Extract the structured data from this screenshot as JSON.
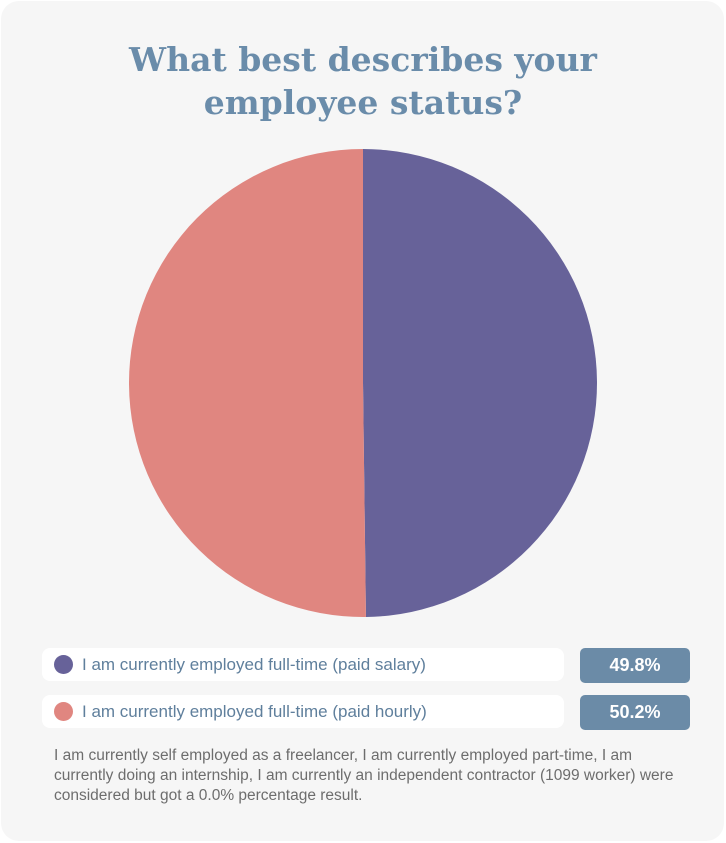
{
  "chart_data": {
    "type": "pie",
    "title_lines": [
      "What best describes your",
      "employee status?"
    ],
    "slices": [
      {
        "label": "I am currently employed full-time (paid salary)",
        "value": 49.8,
        "value_label": "49.8%",
        "color": "#676299"
      },
      {
        "label": "I am currently employed full-time (paid hourly)",
        "value": 50.2,
        "value_label": "50.2%",
        "color": "#e08680"
      }
    ],
    "start": "12 o'clock",
    "direction": "clockwise",
    "legend_position": "bottom"
  },
  "note": "I am currently self employed as a freelancer, I am currently employed part-time, I am currently doing an internship,  I am currently an independent contractor (1099 worker) were considered but got a 0.0% percentage result.",
  "colors": {
    "background": "#f6f6f6",
    "title": "#6a8caa",
    "badge": "#6b8ba7",
    "legend_text": "#5f7f9c"
  }
}
